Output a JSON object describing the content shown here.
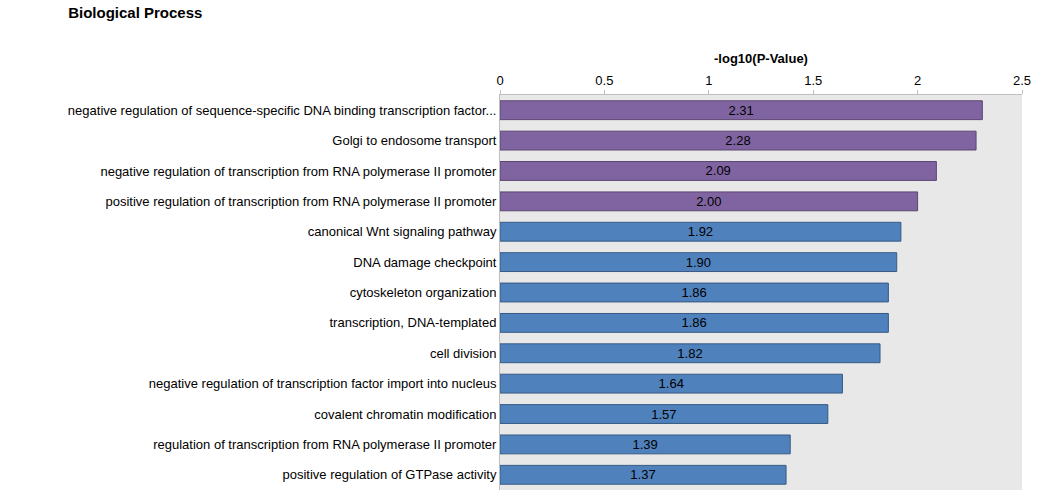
{
  "chart_data": {
    "type": "bar",
    "title": "Biological Process",
    "x_label": "-log10(P-Value)",
    "orientation": "horizontal",
    "categories": [
      "negative regulation of sequence-specific DNA binding transcription factor...",
      "Golgi to endosome transport",
      "negative regulation of transcription from RNA polymerase II promoter",
      "positive regulation of transcription from RNA polymerase II promoter",
      "canonical Wnt signaling pathway",
      "DNA damage checkpoint",
      "cytoskeleton organization",
      "transcription, DNA-templated",
      "cell division",
      "negative regulation of transcription factor import into nucleus",
      "covalent chromatin modification",
      "regulation of transcription from RNA polymerase II promoter",
      "positive regulation of GTPase activity"
    ],
    "values": [
      2.31,
      2.28,
      2.09,
      2.0,
      1.92,
      1.9,
      1.86,
      1.86,
      1.82,
      1.64,
      1.57,
      1.39,
      1.37
    ],
    "value_labels": [
      "2.31",
      "2.28",
      "2.09",
      "2.00",
      "1.92",
      "1.90",
      "1.86",
      "1.86",
      "1.82",
      "1.64",
      "1.57",
      "1.39",
      "1.37"
    ],
    "colors": [
      "#8064a2",
      "#8064a2",
      "#8064a2",
      "#8064a2",
      "#4f81bd",
      "#4f81bd",
      "#4f81bd",
      "#4f81bd",
      "#4f81bd",
      "#4f81bd",
      "#4f81bd",
      "#4f81bd",
      "#4f81bd"
    ],
    "xlim": [
      0,
      2.5
    ],
    "xticks": [
      0,
      0.5,
      1,
      1.5,
      2,
      2.5
    ],
    "data_labels": true,
    "grid": false
  }
}
